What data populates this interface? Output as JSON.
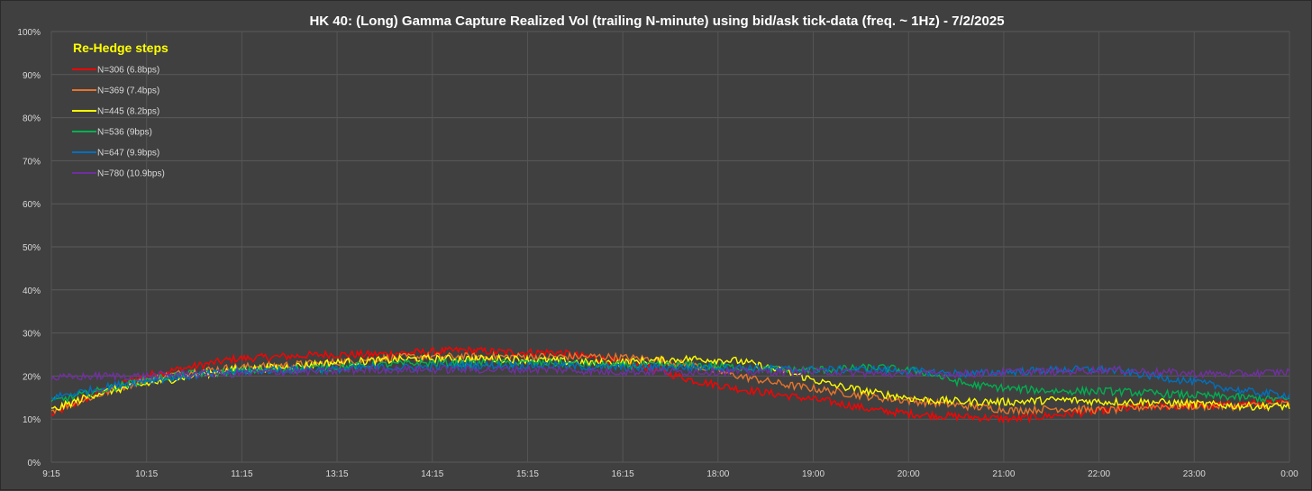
{
  "chart_data": {
    "type": "line",
    "title": "HK 40: (Long) Gamma Capture Realized Vol (trailing N-minute) using bid/ask tick-data (freq. ~ 1Hz) - 7/2/2025",
    "x_tick_labels": [
      "9:15",
      "10:15",
      "11:15",
      "13:15",
      "14:15",
      "15:15",
      "16:15",
      "18:00",
      "19:00",
      "20:00",
      "21:00",
      "22:00",
      "23:00",
      "0:00"
    ],
    "y_tick_labels": [
      "0%",
      "10%",
      "20%",
      "30%",
      "40%",
      "50%",
      "60%",
      "70%",
      "80%",
      "90%",
      "100%"
    ],
    "ylim": [
      0,
      1
    ],
    "grid": true,
    "legend": {
      "title": "Re-Hedge steps",
      "placement": "top-left",
      "title_color": "#ffff00"
    },
    "series": [
      {
        "name": "N=306 (6.8bps)",
        "color": "#ff0000",
        "values": [
          0.11,
          0.16,
          0.2,
          0.22,
          0.24,
          0.245,
          0.25,
          0.25,
          0.255,
          0.26,
          0.255,
          0.255,
          0.24,
          0.22,
          0.19,
          0.17,
          0.155,
          0.14,
          0.12,
          0.11,
          0.105,
          0.1,
          0.11,
          0.12,
          0.13,
          0.13,
          0.135,
          0.14
        ]
      },
      {
        "name": "N=369 (7.4bps)",
        "color": "#e8742a",
        "values": [
          0.12,
          0.155,
          0.19,
          0.21,
          0.22,
          0.225,
          0.23,
          0.24,
          0.245,
          0.245,
          0.245,
          0.245,
          0.245,
          0.24,
          0.225,
          0.2,
          0.18,
          0.165,
          0.15,
          0.14,
          0.13,
          0.12,
          0.125,
          0.12,
          0.13,
          0.13,
          0.13,
          0.135
        ]
      },
      {
        "name": "N=445 (8.2bps)",
        "color": "#ffff00",
        "values": [
          0.12,
          0.16,
          0.18,
          0.2,
          0.215,
          0.22,
          0.23,
          0.235,
          0.24,
          0.24,
          0.24,
          0.235,
          0.23,
          0.235,
          0.24,
          0.235,
          0.21,
          0.18,
          0.16,
          0.145,
          0.14,
          0.14,
          0.145,
          0.14,
          0.14,
          0.135,
          0.13,
          0.13
        ]
      },
      {
        "name": "N=536 (9bps)",
        "color": "#00b050",
        "values": [
          0.14,
          0.165,
          0.19,
          0.205,
          0.21,
          0.215,
          0.22,
          0.225,
          0.23,
          0.23,
          0.23,
          0.23,
          0.225,
          0.225,
          0.225,
          0.22,
          0.215,
          0.215,
          0.22,
          0.21,
          0.18,
          0.17,
          0.165,
          0.165,
          0.16,
          0.155,
          0.15,
          0.145
        ]
      },
      {
        "name": "N=647 (9.9bps)",
        "color": "#0070c0",
        "values": [
          0.15,
          0.17,
          0.19,
          0.2,
          0.21,
          0.215,
          0.215,
          0.22,
          0.22,
          0.225,
          0.225,
          0.225,
          0.22,
          0.22,
          0.22,
          0.22,
          0.215,
          0.215,
          0.215,
          0.21,
          0.205,
          0.21,
          0.215,
          0.215,
          0.2,
          0.185,
          0.165,
          0.155
        ]
      },
      {
        "name": "N=780 (10.9bps)",
        "color": "#7030a0",
        "values": [
          0.195,
          0.2,
          0.2,
          0.205,
          0.205,
          0.21,
          0.21,
          0.215,
          0.215,
          0.215,
          0.215,
          0.215,
          0.21,
          0.21,
          0.21,
          0.21,
          0.21,
          0.21,
          0.205,
          0.205,
          0.205,
          0.21,
          0.21,
          0.215,
          0.21,
          0.205,
          0.205,
          0.21
        ]
      }
    ]
  }
}
